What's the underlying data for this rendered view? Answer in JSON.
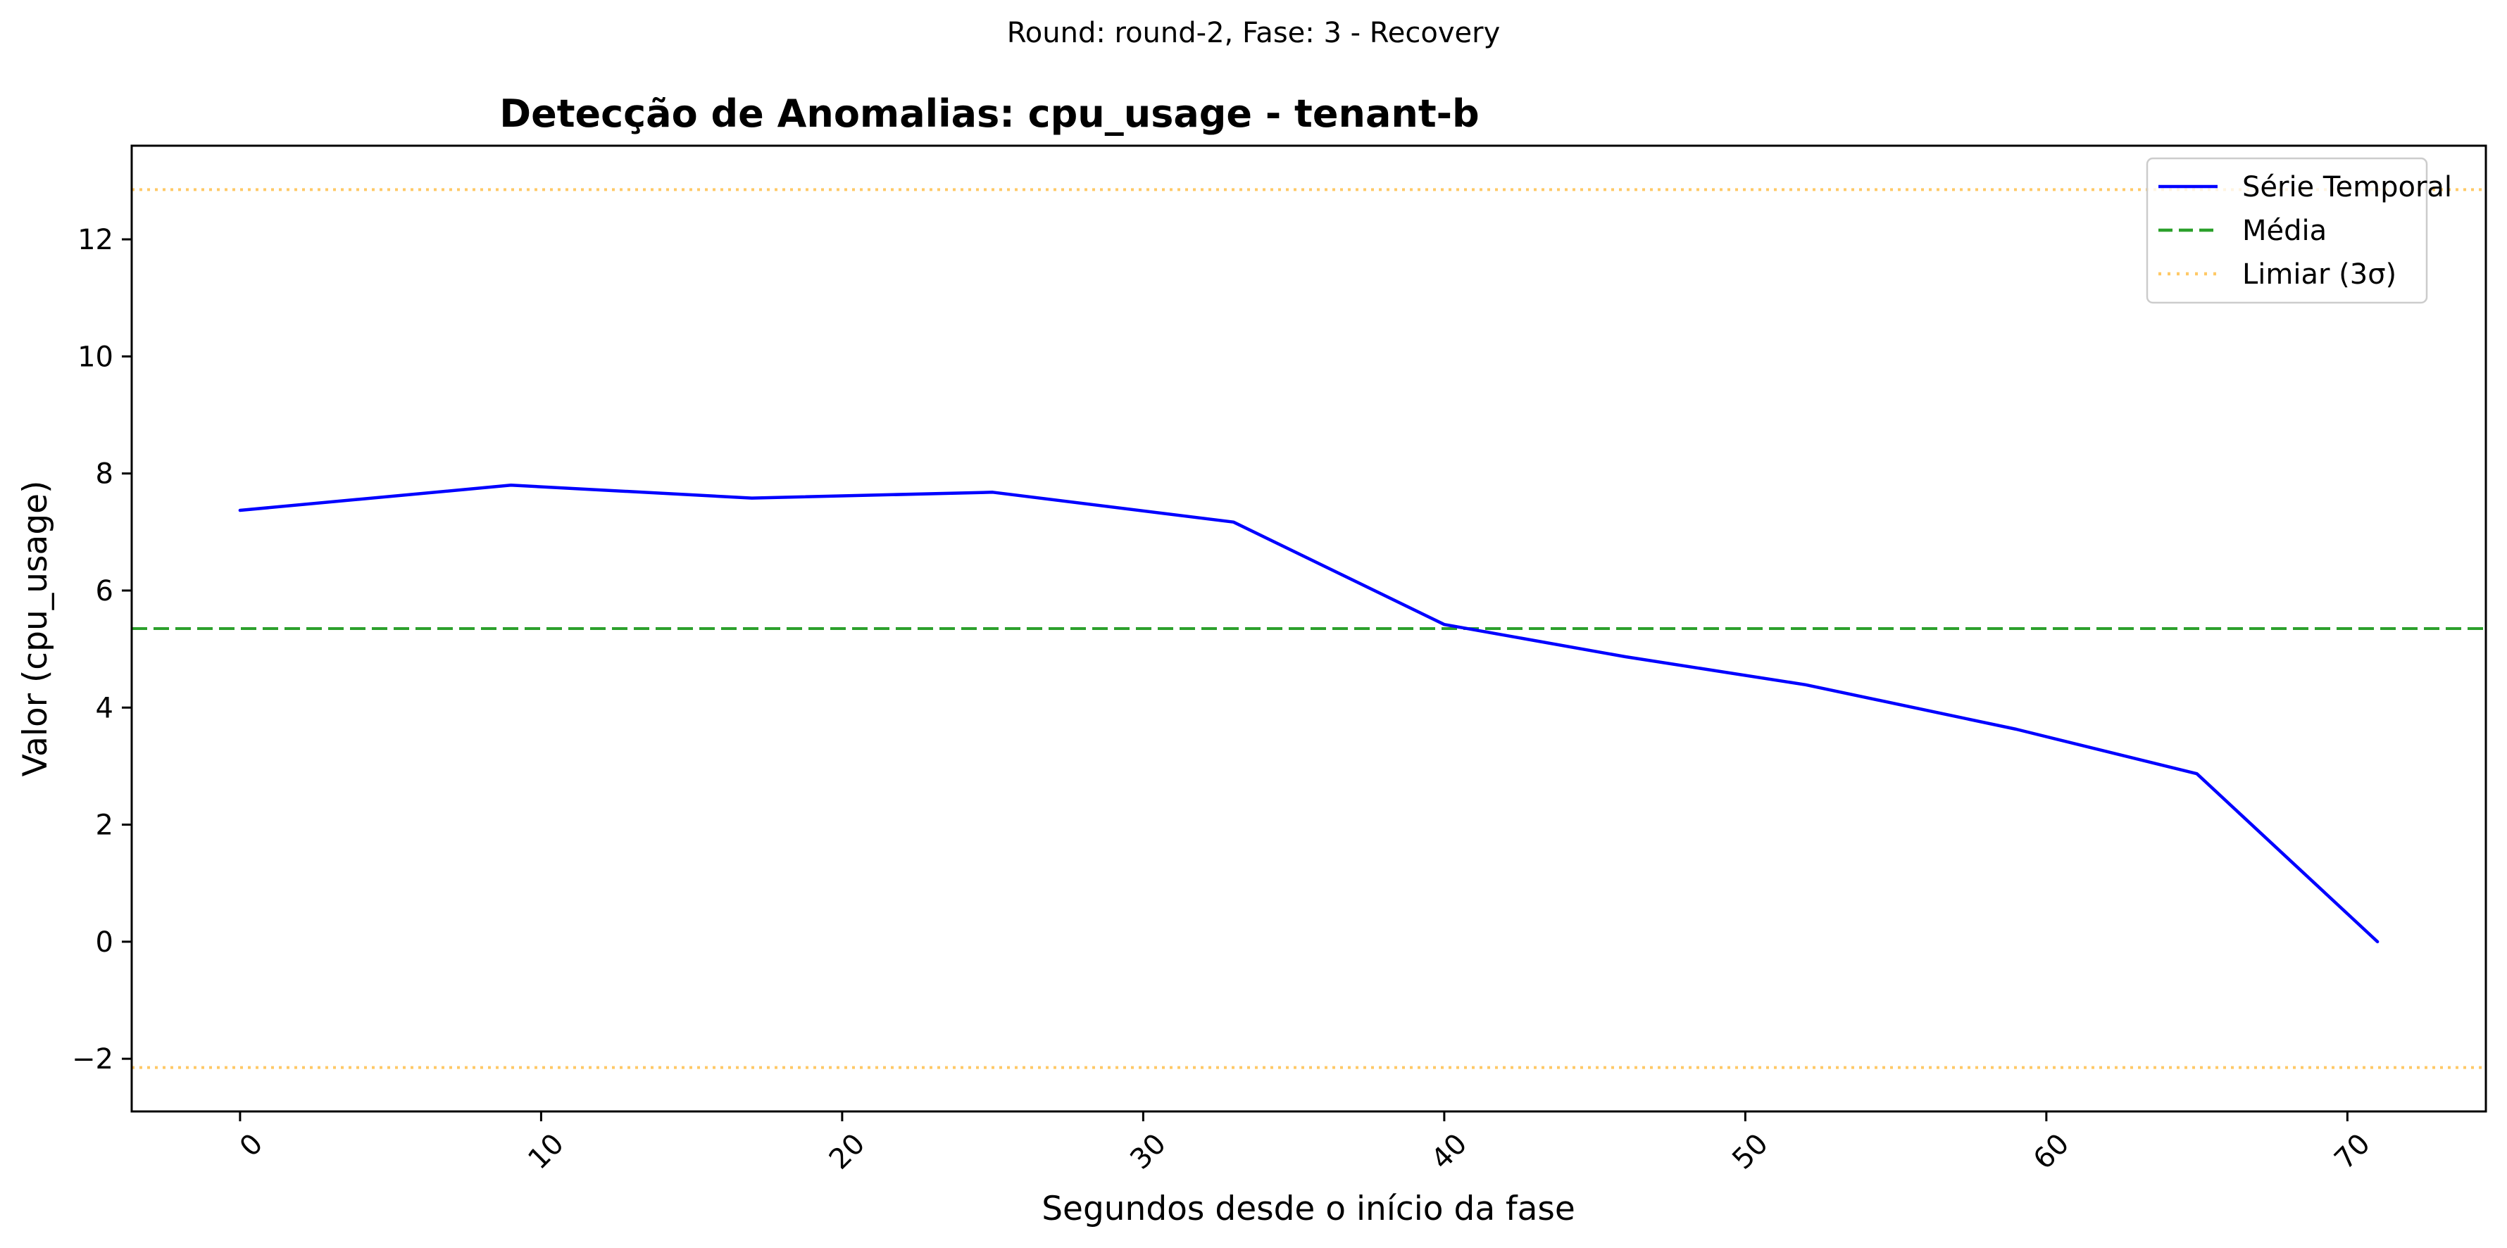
{
  "chart_data": {
    "type": "line",
    "suptitle": "Round: round-2, Fase: 3 - Recovery",
    "title": "Detecção de Anomalias: cpu_usage - tenant-b",
    "xlabel": "Segundos desde o início da fase",
    "ylabel": "Valor (cpu_usage)",
    "xlim": [
      -3.6,
      74.6
    ],
    "ylim": [
      -2.9,
      13.6
    ],
    "xticks": [
      0,
      10,
      20,
      30,
      40,
      50,
      60,
      70
    ],
    "yticks": [
      -2,
      0,
      2,
      4,
      6,
      8,
      10,
      12
    ],
    "ytick_labels": [
      "−2",
      "0",
      "2",
      "4",
      "6",
      "8",
      "10",
      "12"
    ],
    "grid": false,
    "legend_position": "upper right",
    "series": [
      {
        "name": "Série Temporal",
        "style": "solid",
        "color": "#0000ff",
        "x": [
          0,
          9,
          17,
          25,
          33,
          40,
          46,
          52,
          59,
          65,
          71
        ],
        "y": [
          7.37,
          7.8,
          7.58,
          7.68,
          7.17,
          5.42,
          4.87,
          4.39,
          3.63,
          2.87,
          0.0
        ]
      }
    ],
    "reference_lines": [
      {
        "name": "Média",
        "style": "dashed",
        "color": "#2ca02c",
        "y": 5.35,
        "in_legend": true
      },
      {
        "name": "Limiar (3σ)",
        "style": "dotted",
        "color": "#ffc966",
        "y": 12.85,
        "in_legend": true
      },
      {
        "name": "",
        "style": "dotted",
        "color": "#ffc966",
        "y": -2.15,
        "in_legend": false
      }
    ]
  }
}
